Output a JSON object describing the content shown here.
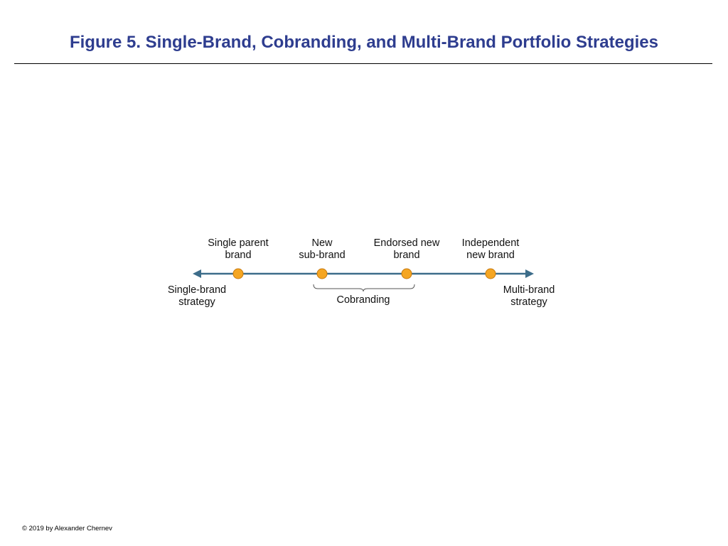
{
  "title": "Figure 5. Single-Brand, Cobranding, and Multi-Brand Portfolio Strategies",
  "continuum": {
    "left_end_label": "Single-brand\nstrategy",
    "right_end_label": "Multi-brand\nstrategy",
    "points": [
      {
        "label": "Single parent\nbrand"
      },
      {
        "label": "New\nsub-brand"
      },
      {
        "label": "Endorsed new\nbrand"
      },
      {
        "label": "Independent\nnew brand"
      }
    ],
    "bracket_label": "Cobranding"
  },
  "colors": {
    "title": "#2e3d8f",
    "axis": "#3d6d8a",
    "point_fill": "#f5a623",
    "point_stroke": "#c77a10",
    "bracket": "#555555"
  },
  "copyright": "© 2019 by Alexander Chernev"
}
